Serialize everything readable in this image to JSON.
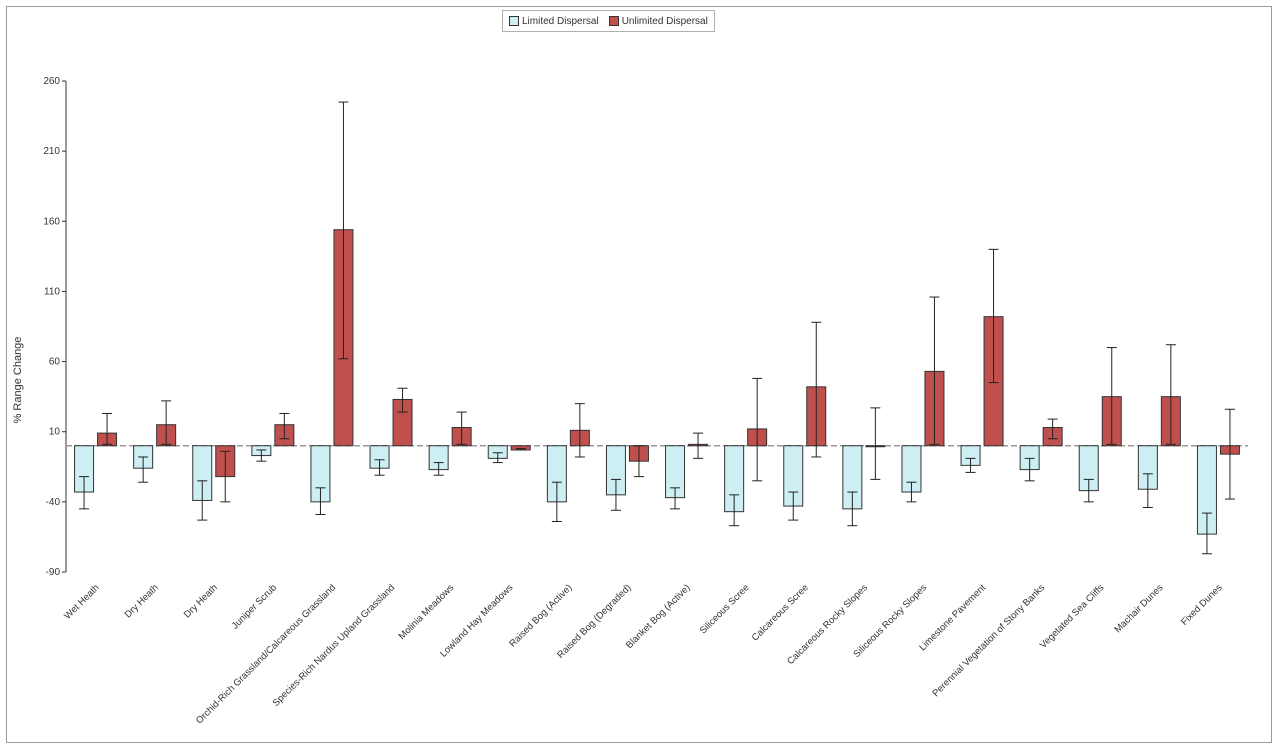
{
  "colors": {
    "limited": "#cdeef2",
    "unlimited": "#c0504d",
    "stroke": "#333333",
    "zero_line": "#999999"
  },
  "chart_data": {
    "type": "bar",
    "ylabel": "% Range Change",
    "xlabel": "",
    "ylim": [
      -90,
      260
    ],
    "yticks": [
      260,
      210,
      160,
      110,
      60,
      10,
      -40,
      -90
    ],
    "legend_position": "top-center",
    "grid": false,
    "categories": [
      "Wet Heath",
      "Dry Heath",
      "Dry Heath",
      "Juniper Scrub",
      "Orchid-Rich Grassland/Calcareous Grassland",
      "Species-Rich Nardus Upland Grassland",
      "Molinia Meadows",
      "Lowland Hay Meadows",
      "Raised Bog (Active)",
      "Raised Bog (Degraded)",
      "Blanket Bog (Active)",
      "Siliceous Scree",
      "Calcareous Scree",
      "Calcareous Rocky Slopes",
      "Siliceous Rocky Slopes",
      "Limestone Pavement",
      "Perennial Vegetation of Stony Banks",
      "Vegetated Sea Cliffs",
      "Machair Dunes",
      "Fixed Dunes"
    ],
    "series": [
      {
        "name": "Limited Dispersal",
        "values": [
          -33,
          -16,
          -39,
          -7,
          -40,
          -16,
          -17,
          -9,
          -40,
          -35,
          -37,
          -47,
          -43,
          -45,
          -33,
          -14,
          -17,
          -32,
          -31,
          -63
        ],
        "err_low": [
          -45,
          -26,
          -53,
          -11,
          -49,
          -21,
          -21,
          -12,
          -54,
          -46,
          -45,
          -57,
          -53,
          -57,
          -40,
          -19,
          -25,
          -40,
          -44,
          -77
        ],
        "err_high": [
          -22,
          -8,
          -25,
          -3,
          -30,
          -10,
          -12,
          -5,
          -26,
          -24,
          -30,
          -35,
          -33,
          -33,
          -26,
          -9,
          -9,
          -24,
          -20,
          -48
        ]
      },
      {
        "name": "Unlimited Dispersal",
        "values": [
          9,
          15,
          -22,
          15,
          154,
          33,
          13,
          -3,
          11,
          -11,
          1,
          12,
          42,
          0,
          53,
          92,
          13,
          35,
          35,
          -6
        ],
        "err_low": [
          1,
          1,
          -40,
          5,
          62,
          24,
          1,
          -3,
          -8,
          -22,
          -9,
          -25,
          -8,
          -24,
          1,
          45,
          5,
          1,
          1,
          -38
        ],
        "err_high": [
          23,
          32,
          -4,
          23,
          245,
          41,
          24,
          -2,
          30,
          0,
          9,
          48,
          88,
          27,
          106,
          140,
          19,
          70,
          72,
          26
        ]
      }
    ]
  }
}
